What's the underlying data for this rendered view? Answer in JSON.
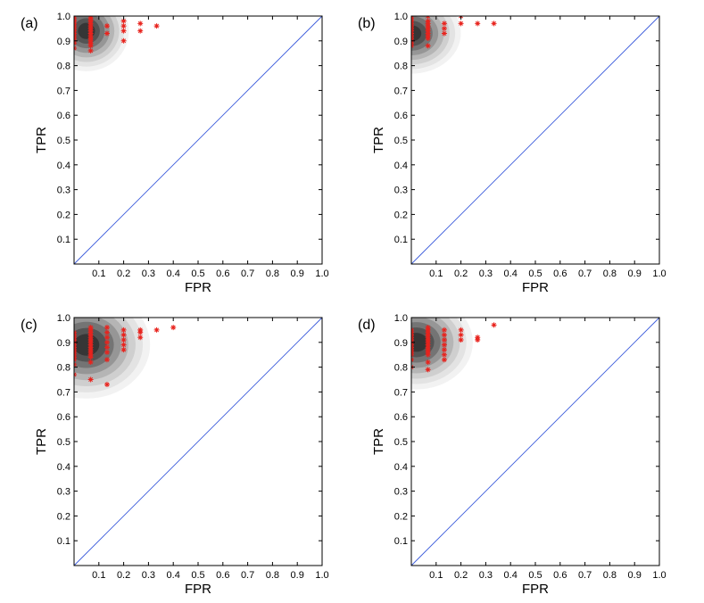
{
  "chart_data": [
    {
      "panel": "(a)",
      "type": "scatter",
      "xlabel": "FPR",
      "ylabel": "TPR",
      "xlim": [
        0,
        1
      ],
      "ylim": [
        0,
        1
      ],
      "xticks": [
        "0.1",
        "0.2",
        "0.3",
        "0.4",
        "0.5",
        "0.6",
        "0.7",
        "0.8",
        "0.9",
        "1.0"
      ],
      "yticks": [
        "0.1",
        "0.2",
        "0.3",
        "0.4",
        "0.5",
        "0.6",
        "0.7",
        "0.8",
        "0.9",
        "1.0"
      ],
      "density_center": [
        0.05,
        0.94
      ],
      "density_spread": [
        0.06,
        0.06
      ],
      "diagonal": [
        [
          0,
          0
        ],
        [
          1,
          1
        ]
      ],
      "points": [
        [
          0.0,
          0.87
        ],
        [
          0.0,
          0.89
        ],
        [
          0.0,
          0.9
        ],
        [
          0.0,
          0.91
        ],
        [
          0.0,
          0.92
        ],
        [
          0.0,
          0.93
        ],
        [
          0.0,
          0.94
        ],
        [
          0.0,
          0.95
        ],
        [
          0.0,
          0.96
        ],
        [
          0.0,
          0.97
        ],
        [
          0.0,
          0.98
        ],
        [
          0.0,
          0.99
        ],
        [
          0.0,
          1.0
        ],
        [
          0.067,
          0.86
        ],
        [
          0.067,
          0.88
        ],
        [
          0.067,
          0.89
        ],
        [
          0.067,
          0.9
        ],
        [
          0.067,
          0.91
        ],
        [
          0.067,
          0.92
        ],
        [
          0.067,
          0.93
        ],
        [
          0.067,
          0.94
        ],
        [
          0.067,
          0.95
        ],
        [
          0.067,
          0.96
        ],
        [
          0.067,
          0.97
        ],
        [
          0.067,
          0.98
        ],
        [
          0.067,
          0.99
        ],
        [
          0.067,
          1.0
        ],
        [
          0.133,
          0.93
        ],
        [
          0.133,
          0.96
        ],
        [
          0.2,
          0.9
        ],
        [
          0.2,
          0.94
        ],
        [
          0.2,
          0.96
        ],
        [
          0.2,
          0.98
        ],
        [
          0.267,
          0.94
        ],
        [
          0.267,
          0.97
        ],
        [
          0.333,
          0.96
        ]
      ]
    },
    {
      "panel": "(b)",
      "type": "scatter",
      "xlabel": "FPR",
      "ylabel": "TPR",
      "xlim": [
        0,
        1
      ],
      "ylim": [
        0,
        1
      ],
      "xticks": [
        "0.1",
        "0.2",
        "0.3",
        "0.4",
        "0.5",
        "0.6",
        "0.7",
        "0.8",
        "0.9",
        "1.0"
      ],
      "yticks": [
        "0.1",
        "0.2",
        "0.3",
        "0.4",
        "0.5",
        "0.6",
        "0.7",
        "0.8",
        "0.9",
        "1.0"
      ],
      "density_center": [
        0.0,
        0.93
      ],
      "density_spread": [
        0.07,
        0.06
      ],
      "diagonal": [
        [
          0,
          0
        ],
        [
          1,
          1
        ]
      ],
      "points": [
        [
          0.0,
          0.88
        ],
        [
          0.0,
          0.89
        ],
        [
          0.0,
          0.9
        ],
        [
          0.0,
          0.91
        ],
        [
          0.0,
          0.92
        ],
        [
          0.0,
          0.93
        ],
        [
          0.0,
          0.94
        ],
        [
          0.0,
          0.95
        ],
        [
          0.0,
          0.96
        ],
        [
          0.0,
          0.97
        ],
        [
          0.0,
          0.98
        ],
        [
          0.0,
          0.99
        ],
        [
          0.0,
          1.0
        ],
        [
          0.067,
          0.88
        ],
        [
          0.067,
          0.91
        ],
        [
          0.067,
          0.92
        ],
        [
          0.067,
          0.93
        ],
        [
          0.067,
          0.94
        ],
        [
          0.067,
          0.95
        ],
        [
          0.067,
          0.96
        ],
        [
          0.067,
          0.97
        ],
        [
          0.067,
          0.98
        ],
        [
          0.067,
          1.0
        ],
        [
          0.133,
          0.93
        ],
        [
          0.133,
          0.95
        ],
        [
          0.133,
          0.97
        ],
        [
          0.2,
          0.97
        ],
        [
          0.2,
          1.0
        ],
        [
          0.267,
          0.97
        ],
        [
          0.333,
          0.97
        ]
      ]
    },
    {
      "panel": "(c)",
      "type": "scatter",
      "xlabel": "FPR",
      "ylabel": "TPR",
      "xlim": [
        0,
        1
      ],
      "ylim": [
        0,
        1
      ],
      "xticks": [
        "0.1",
        "0.2",
        "0.3",
        "0.4",
        "0.5",
        "0.6",
        "0.7",
        "0.8",
        "0.9",
        "1.0"
      ],
      "yticks": [
        "0.1",
        "0.2",
        "0.3",
        "0.4",
        "0.5",
        "0.6",
        "0.7",
        "0.8",
        "0.9",
        "1.0"
      ],
      "density_center": [
        0.05,
        0.89
      ],
      "density_spread": [
        0.09,
        0.08
      ],
      "diagonal": [
        [
          0,
          0
        ],
        [
          1,
          1
        ]
      ],
      "points": [
        [
          0.0,
          0.77
        ],
        [
          0.0,
          0.81
        ],
        [
          0.0,
          0.83
        ],
        [
          0.0,
          0.84
        ],
        [
          0.0,
          0.85
        ],
        [
          0.0,
          0.86
        ],
        [
          0.0,
          0.87
        ],
        [
          0.0,
          0.88
        ],
        [
          0.0,
          0.89
        ],
        [
          0.0,
          0.9
        ],
        [
          0.0,
          0.91
        ],
        [
          0.0,
          0.92
        ],
        [
          0.0,
          0.93
        ],
        [
          0.0,
          0.94
        ],
        [
          0.067,
          0.75
        ],
        [
          0.067,
          0.82
        ],
        [
          0.067,
          0.84
        ],
        [
          0.067,
          0.85
        ],
        [
          0.067,
          0.86
        ],
        [
          0.067,
          0.87
        ],
        [
          0.067,
          0.88
        ],
        [
          0.067,
          0.89
        ],
        [
          0.067,
          0.9
        ],
        [
          0.067,
          0.91
        ],
        [
          0.067,
          0.92
        ],
        [
          0.067,
          0.93
        ],
        [
          0.067,
          0.94
        ],
        [
          0.067,
          0.95
        ],
        [
          0.067,
          0.96
        ],
        [
          0.133,
          0.73
        ],
        [
          0.133,
          0.83
        ],
        [
          0.133,
          0.86
        ],
        [
          0.133,
          0.88
        ],
        [
          0.133,
          0.9
        ],
        [
          0.133,
          0.92
        ],
        [
          0.133,
          0.94
        ],
        [
          0.133,
          0.96
        ],
        [
          0.2,
          0.87
        ],
        [
          0.2,
          0.89
        ],
        [
          0.2,
          0.91
        ],
        [
          0.2,
          0.93
        ],
        [
          0.2,
          0.95
        ],
        [
          0.267,
          0.92
        ],
        [
          0.267,
          0.94
        ],
        [
          0.267,
          0.95
        ],
        [
          0.333,
          0.95
        ],
        [
          0.4,
          0.96
        ]
      ]
    },
    {
      "panel": "(d)",
      "type": "scatter",
      "xlabel": "FPR",
      "ylabel": "TPR",
      "xlim": [
        0,
        1
      ],
      "ylim": [
        0,
        1
      ],
      "xticks": [
        "0.1",
        "0.2",
        "0.3",
        "0.4",
        "0.5",
        "0.6",
        "0.7",
        "0.8",
        "0.9",
        "1.0"
      ],
      "yticks": [
        "0.1",
        "0.2",
        "0.3",
        "0.4",
        "0.5",
        "0.6",
        "0.7",
        "0.8",
        "0.9",
        "1.0"
      ],
      "density_center": [
        0.02,
        0.9
      ],
      "density_spread": [
        0.08,
        0.07
      ],
      "diagonal": [
        [
          0,
          0
        ],
        [
          1,
          1
        ]
      ],
      "points": [
        [
          0.0,
          0.8
        ],
        [
          0.0,
          0.83
        ],
        [
          0.0,
          0.85
        ],
        [
          0.0,
          0.86
        ],
        [
          0.0,
          0.87
        ],
        [
          0.0,
          0.88
        ],
        [
          0.0,
          0.89
        ],
        [
          0.0,
          0.9
        ],
        [
          0.0,
          0.91
        ],
        [
          0.0,
          0.92
        ],
        [
          0.0,
          0.93
        ],
        [
          0.0,
          0.94
        ],
        [
          0.0,
          0.95
        ],
        [
          0.067,
          0.79
        ],
        [
          0.067,
          0.82
        ],
        [
          0.067,
          0.85
        ],
        [
          0.067,
          0.86
        ],
        [
          0.067,
          0.87
        ],
        [
          0.067,
          0.88
        ],
        [
          0.067,
          0.89
        ],
        [
          0.067,
          0.9
        ],
        [
          0.067,
          0.91
        ],
        [
          0.067,
          0.92
        ],
        [
          0.067,
          0.93
        ],
        [
          0.067,
          0.94
        ],
        [
          0.067,
          0.95
        ],
        [
          0.067,
          0.96
        ],
        [
          0.133,
          0.83
        ],
        [
          0.133,
          0.85
        ],
        [
          0.133,
          0.87
        ],
        [
          0.133,
          0.89
        ],
        [
          0.133,
          0.91
        ],
        [
          0.133,
          0.93
        ],
        [
          0.133,
          0.95
        ],
        [
          0.2,
          0.91
        ],
        [
          0.2,
          0.93
        ],
        [
          0.2,
          0.95
        ],
        [
          0.267,
          0.91
        ],
        [
          0.267,
          0.92
        ],
        [
          0.333,
          0.97
        ]
      ]
    }
  ],
  "style": {
    "diagonal_color": "#3b5bdb",
    "point_color": "#e8231d",
    "density_colors": [
      "#f2f2f2",
      "#e3e3e3",
      "#cfcfcf",
      "#b5b5b5",
      "#969696",
      "#747474",
      "#545454",
      "#363636"
    ]
  }
}
